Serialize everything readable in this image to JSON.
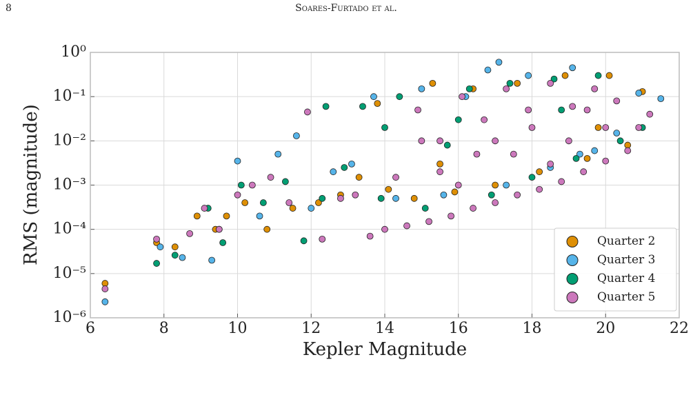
{
  "header": {
    "page_number": "8",
    "running_title": "Soares-Furtado et al."
  },
  "chart_data": {
    "type": "scatter",
    "x_label": "Kepler Magnitude",
    "y_label": "RMS (magnitude)",
    "xlim": [
      6,
      22
    ],
    "xticks": [
      6,
      8,
      10,
      12,
      14,
      16,
      18,
      20,
      22
    ],
    "ylim": [
      1e-06,
      1
    ],
    "yticks": [
      {
        "value": 1e-06,
        "label": "10⁻⁶"
      },
      {
        "value": 1e-05,
        "label": "10⁻⁵"
      },
      {
        "value": 0.0001,
        "label": "10⁻⁴"
      },
      {
        "value": 0.001,
        "label": "10⁻³"
      },
      {
        "value": 0.01,
        "label": "10⁻²"
      },
      {
        "value": 0.1,
        "label": "10⁻¹"
      },
      {
        "value": 1,
        "label": "10⁰"
      }
    ],
    "log_y": true,
    "grid": true,
    "legend": "lower right",
    "series": [
      {
        "name": "Quarter 2",
        "color": "#de8f05",
        "x": [
          6.4,
          7.8,
          8.3,
          8.9,
          9.4,
          9.7,
          10.2,
          10.8,
          11.5,
          12.2,
          12.8,
          13.3,
          14.1,
          14.8,
          15.3,
          15.9,
          16.4,
          17.0,
          17.6,
          18.2,
          18.9,
          19.5,
          20.1,
          20.6,
          21.0,
          15.5,
          19.8,
          13.8
        ],
        "values": [
          6e-06,
          5e-05,
          4e-05,
          0.0002,
          0.0001,
          0.0002,
          0.0004,
          0.0001,
          0.0003,
          0.0004,
          0.0006,
          0.0015,
          0.0008,
          0.0005,
          0.2,
          0.0007,
          0.15,
          0.001,
          0.2,
          0.002,
          0.3,
          0.004,
          0.3,
          0.008,
          0.13,
          0.003,
          0.02,
          0.07
        ]
      },
      {
        "name": "Quarter 3",
        "color": "#56b4e9",
        "x": [
          6.4,
          7.9,
          8.5,
          9.3,
          9.5,
          10.0,
          10.6,
          11.1,
          11.6,
          12.0,
          12.6,
          13.1,
          13.7,
          14.3,
          15.0,
          15.6,
          16.2,
          16.8,
          17.3,
          17.9,
          18.5,
          19.1,
          19.7,
          20.3,
          20.9,
          21.5,
          17.1,
          19.3
        ],
        "values": [
          2.3e-06,
          4e-05,
          2.3e-05,
          2e-05,
          0.0001,
          0.0035,
          0.0002,
          0.005,
          0.013,
          0.0003,
          0.002,
          0.003,
          0.1,
          0.0005,
          0.15,
          0.0006,
          0.1,
          0.4,
          0.001,
          0.3,
          0.0025,
          0.45,
          0.006,
          0.015,
          0.12,
          0.09,
          0.6,
          0.005
        ]
      },
      {
        "name": "Quarter 4",
        "color": "#029e73",
        "x": [
          7.8,
          8.3,
          9.2,
          9.6,
          10.1,
          10.7,
          11.3,
          11.8,
          12.4,
          12.9,
          13.4,
          13.9,
          14.4,
          15.1,
          15.7,
          16.3,
          16.9,
          17.4,
          18.0,
          18.6,
          19.2,
          19.8,
          20.4,
          21.0,
          12.3,
          14.0,
          16.0,
          18.8
        ],
        "values": [
          1.7e-05,
          2.6e-05,
          0.0003,
          5e-05,
          0.001,
          0.0004,
          0.0012,
          5.5e-05,
          0.06,
          0.0025,
          0.06,
          0.0005,
          0.1,
          0.0003,
          0.008,
          0.15,
          0.0006,
          0.2,
          0.0015,
          0.25,
          0.004,
          0.3,
          0.01,
          0.02,
          0.0005,
          0.02,
          0.03,
          0.05
        ]
      },
      {
        "name": "Quarter 5",
        "color": "#cc78bc",
        "x": [
          6.4,
          7.8,
          8.7,
          9.1,
          9.5,
          10.0,
          10.4,
          10.9,
          11.4,
          11.9,
          12.3,
          12.8,
          13.2,
          13.6,
          14.0,
          14.3,
          14.6,
          14.9,
          15.2,
          15.5,
          15.8,
          16.1,
          16.4,
          16.7,
          17.0,
          17.3,
          17.6,
          17.9,
          18.2,
          18.5,
          18.8,
          19.1,
          19.4,
          19.7,
          20.0,
          20.3,
          20.6,
          20.9,
          21.2,
          15.0,
          16.0,
          17.0,
          18.0,
          19.0,
          20.0,
          15.5,
          16.5,
          17.5,
          18.5,
          19.5
        ],
        "values": [
          4.5e-06,
          6e-05,
          8e-05,
          0.0003,
          0.0001,
          0.0006,
          0.001,
          0.0015,
          0.0004,
          0.045,
          6e-05,
          0.0005,
          0.0006,
          7e-05,
          0.0001,
          0.0015,
          0.00012,
          0.05,
          0.00015,
          0.01,
          0.0002,
          0.1,
          0.0003,
          0.03,
          0.0004,
          0.15,
          0.0006,
          0.05,
          0.0008,
          0.2,
          0.0012,
          0.06,
          0.002,
          0.15,
          0.0035,
          0.08,
          0.006,
          0.02,
          0.04,
          0.01,
          0.001,
          0.01,
          0.02,
          0.01,
          0.02,
          0.002,
          0.005,
          0.005,
          0.003,
          0.05
        ]
      }
    ]
  }
}
